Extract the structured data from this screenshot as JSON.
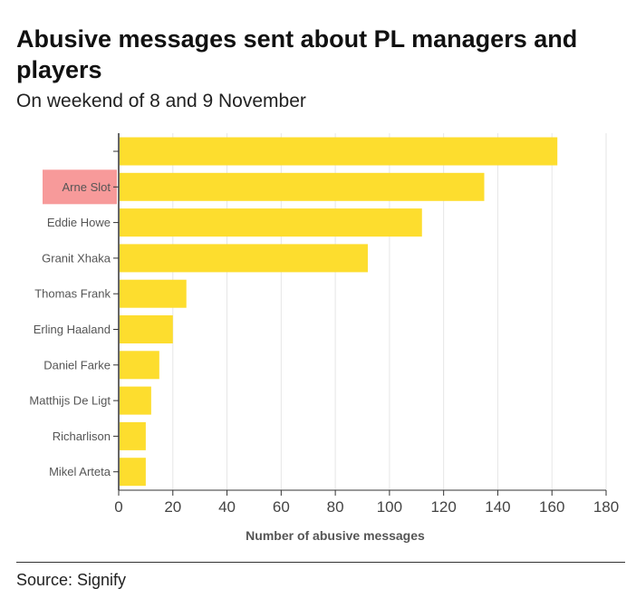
{
  "header": {
    "title": "Abusive messages sent about PL managers and players",
    "subtitle": "On weekend of 8 and 9 November"
  },
  "footer": {
    "source": "Source: Signify"
  },
  "colors": {
    "bar": "#FDDD2E",
    "highlight": "#F79A9A",
    "highlight_text": "#B0413E",
    "grid": "#E6E6E6",
    "axis": "#333333"
  },
  "chart_data": {
    "type": "bar",
    "orientation": "horizontal",
    "categories": [
      "",
      "Arne Slot",
      "Eddie Howe",
      "Granit Xhaka",
      "Thomas Frank",
      "Erling Haaland",
      "Daniel Farke",
      "Matthijs De Ligt",
      "Richarlison",
      "Mikel Arteta"
    ],
    "values": [
      162,
      135,
      112,
      92,
      25,
      20,
      15,
      12,
      10,
      10
    ],
    "highlighted_category": "Arne Slot",
    "xlabel": "Number of abusive messages",
    "ylabel": "",
    "xlim": [
      0,
      180
    ],
    "xticks": [
      0,
      20,
      40,
      60,
      80,
      100,
      120,
      140,
      160,
      180
    ],
    "grid": "vertical"
  }
}
